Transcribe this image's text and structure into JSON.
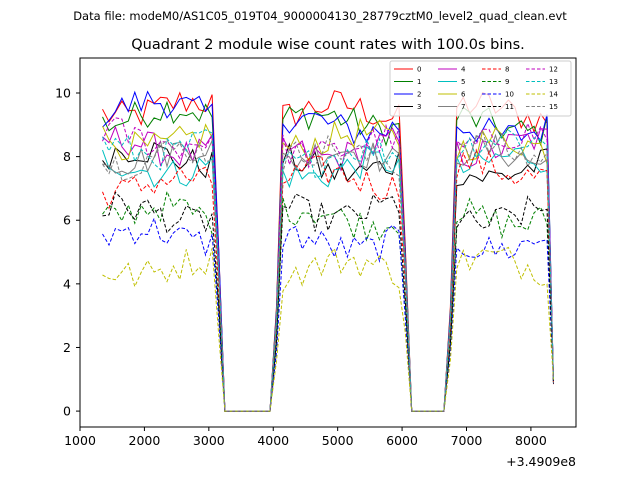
{
  "chart_data": {
    "type": "line",
    "suptitle": "Data file: modeM0/AS1C05_019T04_9000004130_28779cztM0_level2_quad_clean.evt",
    "title": "Quadrant 2 module wise count rates with 100.0s bins.",
    "xlabel": "",
    "ylabel": "",
    "x_offset_label": "+3.4909e8",
    "xlim": [
      1000,
      8700
    ],
    "ylim": [
      -0.5,
      11.1
    ],
    "xticks": [
      1000,
      2000,
      3000,
      4000,
      5000,
      6000,
      7000,
      8000
    ],
    "yticks": [
      0,
      2,
      4,
      6,
      8,
      10
    ],
    "legend_position": "top-right",
    "legend_columns": 4,
    "gaps": [
      [
        3250,
        4050
      ],
      [
        6250,
        6750
      ]
    ],
    "segments": [
      {
        "x_start": 1350,
        "x_end": 3050
      },
      {
        "x_start": 4150,
        "x_end": 5950
      },
      {
        "x_start": 6850,
        "x_end": 8250
      }
    ],
    "series": [
      {
        "name": "0",
        "color": "#ff0000",
        "dash": "solid",
        "seg1": 9.5,
        "seg2": 9.4,
        "seg3": 9.4
      },
      {
        "name": "1",
        "color": "#008000",
        "dash": "solid",
        "seg1": 9.3,
        "seg2": 9.1,
        "seg3": 9.0
      },
      {
        "name": "2",
        "color": "#0000ff",
        "dash": "solid",
        "seg1": 9.5,
        "seg2": 9.0,
        "seg3": 8.9
      },
      {
        "name": "3",
        "color": "#000000",
        "dash": "solid",
        "seg1": 8.0,
        "seg2": 7.7,
        "seg3": 7.6
      },
      {
        "name": "4",
        "color": "#bf00bf",
        "dash": "solid",
        "seg1": 8.3,
        "seg2": 8.2,
        "seg3": 8.3
      },
      {
        "name": "5",
        "color": "#00bfbf",
        "dash": "solid",
        "seg1": 7.7,
        "seg2": 7.6,
        "seg3": 7.8
      },
      {
        "name": "6",
        "color": "#bfbf00",
        "dash": "solid",
        "seg1": 8.5,
        "seg2": 8.5,
        "seg3": 8.3
      },
      {
        "name": "7",
        "color": "#808080",
        "dash": "solid",
        "seg1": 8.1,
        "seg2": 8.0,
        "seg3": 8.0
      },
      {
        "name": "8",
        "color": "#ff0000",
        "dash": "dashed",
        "seg1": 7.1,
        "seg2": 7.3,
        "seg3": 7.6
      },
      {
        "name": "9",
        "color": "#008000",
        "dash": "dashed",
        "seg1": 6.2,
        "seg2": 6.1,
        "seg3": 6.1
      },
      {
        "name": "10",
        "color": "#0000ff",
        "dash": "dashed",
        "seg1": 5.5,
        "seg2": 5.3,
        "seg3": 5.3
      },
      {
        "name": "11",
        "color": "#000000",
        "dash": "dashed",
        "seg1": 6.2,
        "seg2": 6.3,
        "seg3": 6.1
      },
      {
        "name": "12",
        "color": "#bf00bf",
        "dash": "dashed",
        "seg1": 8.6,
        "seg2": 8.3,
        "seg3": 8.5
      },
      {
        "name": "13",
        "color": "#00bfbf",
        "dash": "dashed",
        "seg1": 8.3,
        "seg2": 8.0,
        "seg3": 8.4
      },
      {
        "name": "14",
        "color": "#bfbf00",
        "dash": "dashed",
        "seg1": 4.5,
        "seg2": 4.5,
        "seg3": 4.6
      },
      {
        "name": "15",
        "color": "#808080",
        "dash": "dashed",
        "seg1": 8.0,
        "seg2": 8.0,
        "seg3": 8.2
      }
    ]
  }
}
